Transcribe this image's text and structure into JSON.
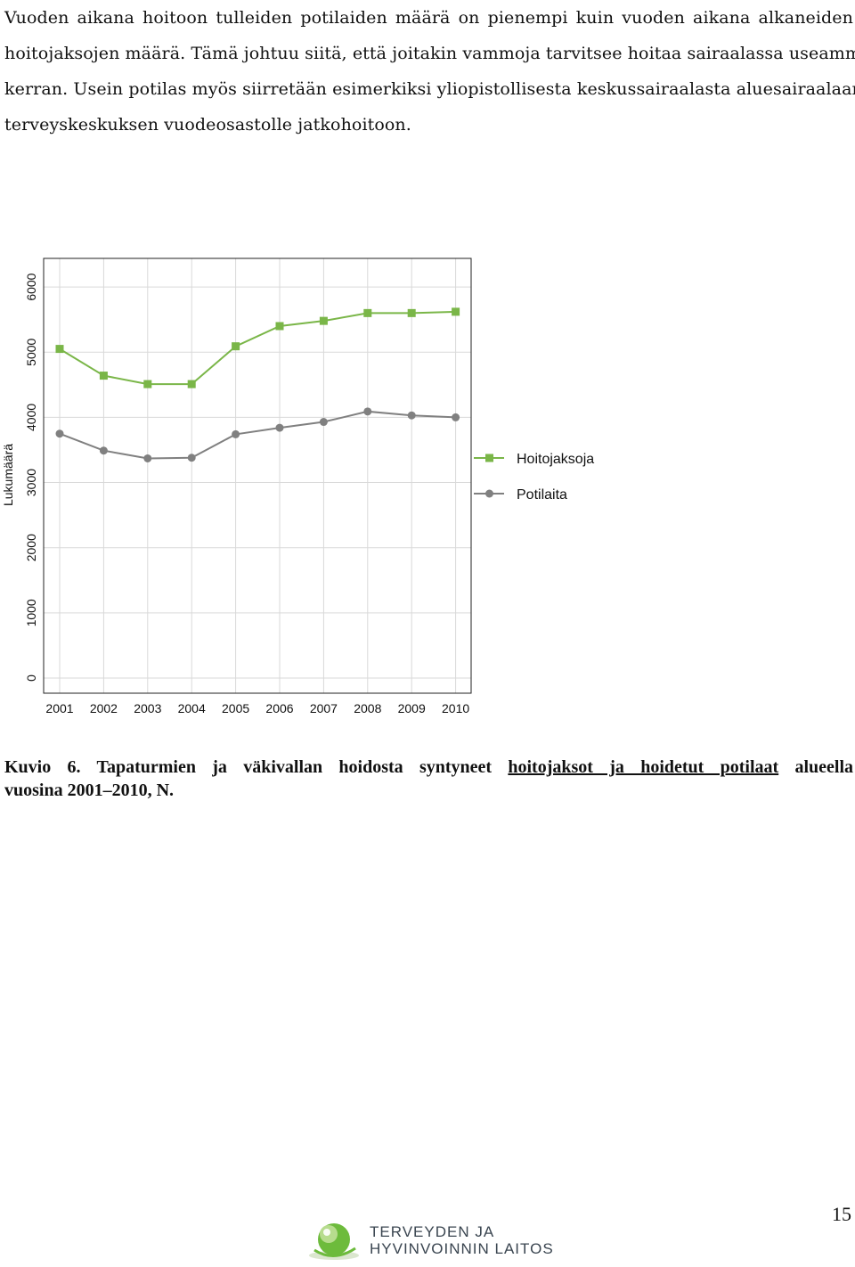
{
  "paragraph": {
    "lines": [
      "Vuoden aikana hoitoon tulleiden potilaiden määrä on pienempi kuin vuoden aikana alkaneiden",
      "hoitojaksojen määrä. Tämä johtuu siitä, että joitakin vammoja tarvitsee hoitaa sairaalassa useamman",
      "kerran. Usein potilas myös siirretään esimerkiksi yliopistollisesta keskussairaalasta aluesairaalaan tai",
      "terveyskeskuksen vuodeosastolle jatkohoitoon."
    ]
  },
  "chart_data": {
    "type": "line",
    "title": "",
    "xlabel": "",
    "ylabel": "Lukumäärä",
    "x": [
      "2001",
      "2002",
      "2003",
      "2004",
      "2005",
      "2006",
      "2007",
      "2008",
      "2009",
      "2010"
    ],
    "yticks": [
      "0",
      "1000",
      "2000",
      "3000",
      "4000",
      "5000",
      "6000"
    ],
    "ylim": [
      0,
      6000
    ],
    "grid": true,
    "legend": "right",
    "series": [
      {
        "name": "Hoitojaksoja",
        "marker": "square",
        "color": "#7ab648",
        "values": [
          5050,
          4640,
          4510,
          4510,
          5090,
          5400,
          5480,
          5600,
          5600,
          5620
        ]
      },
      {
        "name": "Potilaita",
        "marker": "circle",
        "color": "#808080",
        "values": [
          3750,
          3490,
          3370,
          3380,
          3740,
          3840,
          3930,
          4090,
          4030,
          4000
        ]
      }
    ]
  },
  "caption": {
    "prefix": "Kuvio 6. Tapaturmien ja väkivallan hoidosta syntyneet ",
    "underlined": "hoitojaksot ja hoidetut potilaat",
    "suffix": " alueella",
    "line2": "vuosina 2001–2010, N."
  },
  "page_number": "15",
  "logo": {
    "line1": "TERVEYDEN JA",
    "line2": "HYVINVOINNIN LAITOS",
    "colors": {
      "green": "#6dbb3c",
      "light_green": "#b7dc8e",
      "text": "#3a4550"
    }
  }
}
